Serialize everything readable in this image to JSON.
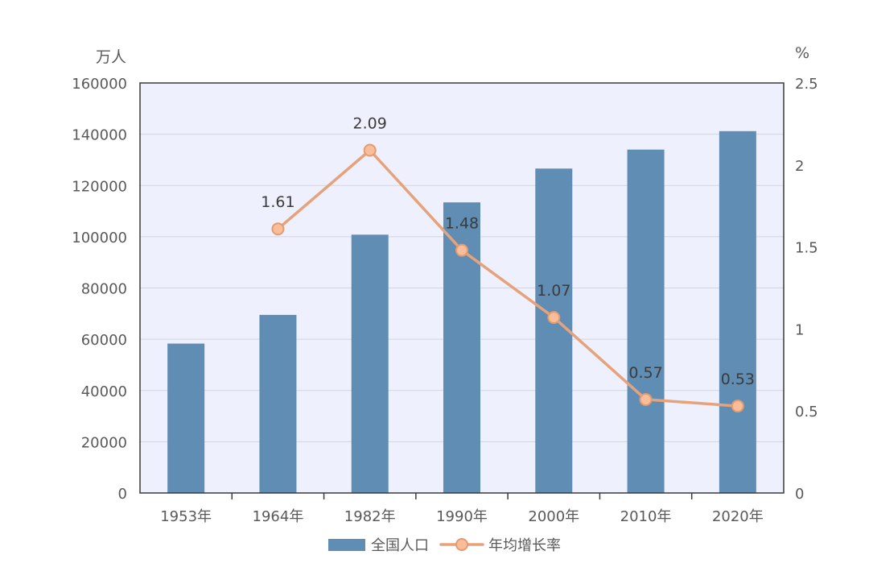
{
  "chart_data": {
    "type": "bar",
    "categories": [
      "1953年",
      "1964年",
      "1982年",
      "1990年",
      "2000年",
      "2010年",
      "2020年"
    ],
    "series": [
      {
        "name": "全国人口",
        "type": "bar",
        "axis": "left",
        "values": [
          58300,
          69500,
          100800,
          113400,
          126600,
          134000,
          141200
        ],
        "color": "#5f8db4"
      },
      {
        "name": "年均增长率",
        "type": "line",
        "axis": "right",
        "values": [
          null,
          1.61,
          2.09,
          1.48,
          1.07,
          0.57,
          0.53
        ],
        "show_data_labels": true,
        "color": "#e5a27b",
        "marker": "circle",
        "marker_fill": "#f9bd9a",
        "marker_edge": "#e39b70"
      }
    ],
    "y_left": {
      "unit": "万人",
      "ylim": [
        0,
        160000
      ],
      "ticks": [
        0,
        20000,
        40000,
        60000,
        80000,
        100000,
        120000,
        140000,
        160000
      ]
    },
    "y_right": {
      "unit": "%",
      "ylim": [
        0,
        2.5
      ],
      "ticks": [
        0,
        0.5,
        1,
        1.5,
        2,
        2.5
      ]
    },
    "grid": true,
    "grid_color": "#d3d4dc",
    "plot_background": "#eef1fd",
    "axis_color": "#3a3a3a",
    "legend": {
      "placement": "bottom"
    }
  }
}
